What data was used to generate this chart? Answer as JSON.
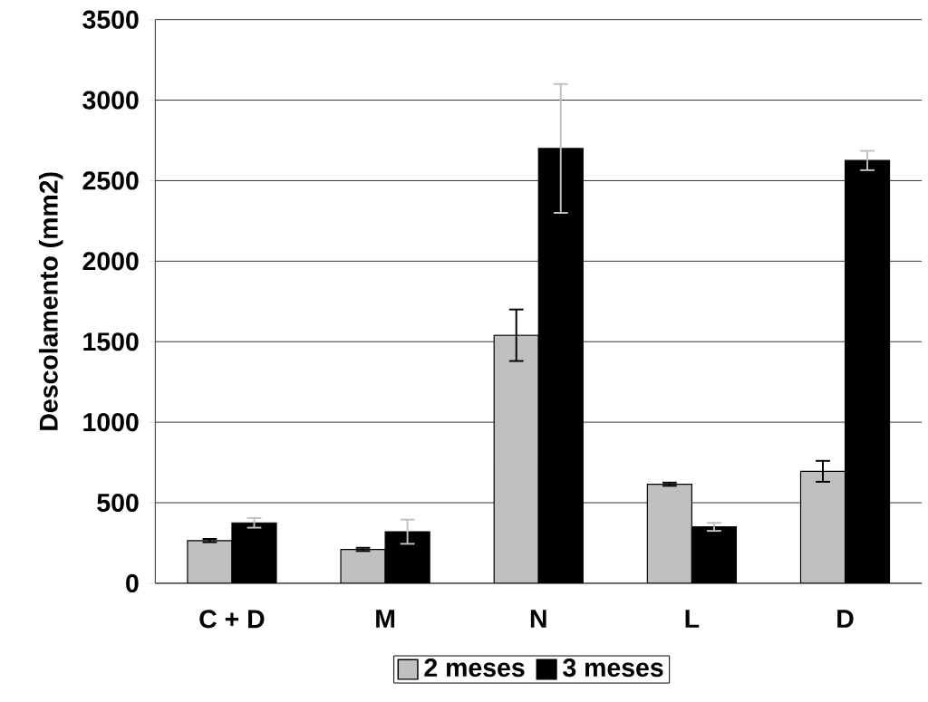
{
  "chart_data": {
    "type": "bar",
    "ylabel": "Descolamento (mm2)",
    "categories": [
      "C + D",
      "M",
      "N",
      "L",
      "D"
    ],
    "series": [
      {
        "name": "2 meses",
        "color": "#c0c0c0",
        "values": [
          265,
          210,
          1540,
          615,
          695
        ],
        "errors": [
          10,
          10,
          160,
          10,
          65
        ]
      },
      {
        "name": "3 meses",
        "color": "#000000",
        "values": [
          375,
          320,
          2700,
          350,
          2625
        ],
        "errors": [
          30,
          75,
          400,
          25,
          60
        ]
      }
    ],
    "ylim": [
      0,
      3500
    ],
    "yticks": [
      0,
      500,
      1000,
      1500,
      2000,
      2500,
      3000,
      3500
    ],
    "grid": "y",
    "legend": "bottom"
  }
}
